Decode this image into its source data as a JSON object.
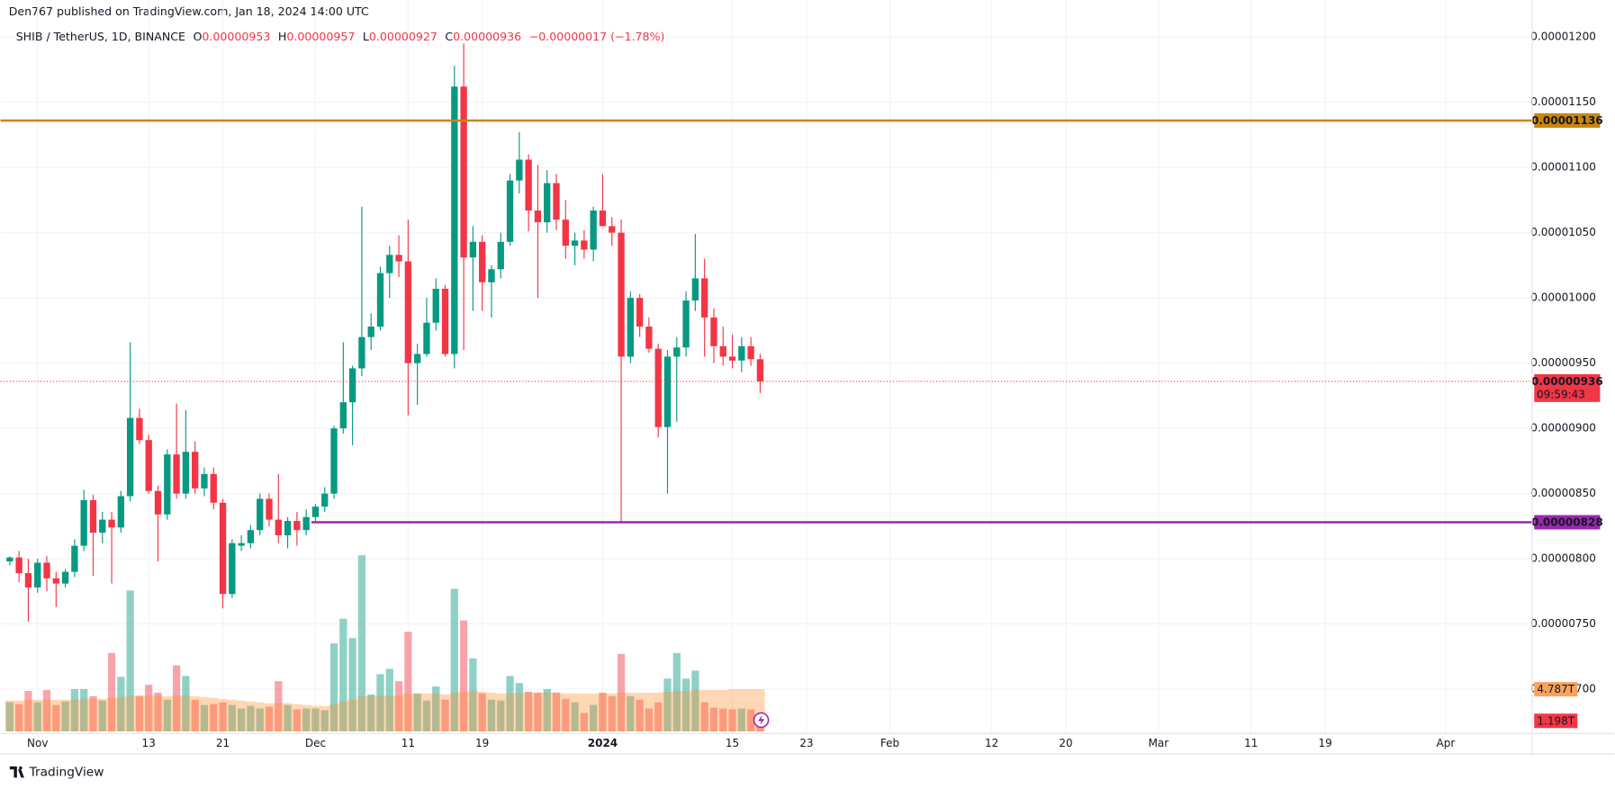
{
  "header": {
    "publisher": "Den767 published on TradingView.com, Jan 18, 2024 14:00 UTC"
  },
  "legend": {
    "symbol": "SHIB / TetherUS, 1D, BINANCE",
    "o": "O",
    "h": "H",
    "l": "L",
    "c": "C",
    "change": "−0.00000017 (−1.78%)"
  },
  "footer": {
    "brand": "TradingView"
  },
  "chart_data": {
    "type": "candlestick",
    "open": [
      7.98e-06,
      8.01e-06,
      7.89e-06,
      7.78e-06,
      7.97e-06,
      7.85e-06,
      7.81e-06,
      7.9e-06,
      8.1e-06,
      8.45e-06,
      8.2e-06,
      8.3e-06,
      8.24e-06,
      8.48e-06,
      9.08e-06,
      8.91e-06,
      8.52e-06,
      8.34e-06,
      8.8e-06,
      8.5e-06,
      8.82e-06,
      8.54e-06,
      8.65e-06,
      8.43e-06,
      7.73e-06,
      8.1e-06,
      8.12e-06,
      8.22e-06,
      8.46e-06,
      8.3e-06,
      8.18e-06,
      8.29e-06,
      8.22e-06,
      8.32e-06,
      8.4e-06,
      8.5e-06,
      9e-06,
      9.2e-06,
      9.46e-06,
      9.7e-06,
      9.78e-06,
      1.019e-05,
      1.033e-05,
      1.028e-05,
      9.5e-06,
      9.57e-06,
      9.81e-06,
      1.007e-05,
      9.57e-06,
      1.162e-05,
      1.031e-05,
      1.043e-05,
      1.012e-05,
      1.022e-05,
      1.043e-05,
      1.09e-05,
      1.106e-05,
      1.067e-05,
      1.058e-05,
      1.088e-05,
      1.06e-05,
      1.04e-05,
      1.044e-05,
      1.037e-05,
      1.067e-05,
      1.055e-05,
      1.05e-05,
      9.55e-06,
      1e-05,
      9.78e-06,
      9.61e-06,
      9.01e-06,
      9.55e-06,
      9.62e-06,
      9.98e-06,
      1.015e-05,
      9.85e-06,
      9.63e-06,
      9.55e-06,
      9.52e-06,
      9.63e-06,
      9.53e-06
    ],
    "high": [
      8.02e-06,
      8.06e-06,
      8e-06,
      8e-06,
      8.02e-06,
      7.9e-06,
      7.92e-06,
      8.15e-06,
      8.53e-06,
      8.49e-06,
      8.36e-06,
      8.36e-06,
      8.52e-06,
      9.66e-06,
      9.15e-06,
      8.95e-06,
      8.56e-06,
      8.84e-06,
      9.19e-06,
      9.14e-06,
      8.9e-06,
      8.7e-06,
      8.7e-06,
      8.46e-06,
      8.15e-06,
      8.18e-06,
      8.26e-06,
      8.5e-06,
      8.5e-06,
      8.65e-06,
      8.32e-06,
      8.36e-06,
      8.38e-06,
      8.42e-06,
      8.55e-06,
      9.02e-06,
      9.66e-06,
      9.48e-06,
      1.07e-05,
      9.88e-06,
      1.024e-05,
      1.04e-05,
      1.048e-05,
      1.06e-05,
      9.65e-06,
      1e-05,
      1.015e-05,
      1.01e-05,
      1.178e-05,
      1.195e-05,
      1.055e-05,
      1.048e-05,
      1.025e-05,
      1.05e-05,
      1.095e-05,
      1.127e-05,
      1.11e-05,
      1.102e-05,
      1.098e-05,
      1.095e-05,
      1.075e-05,
      1.05e-05,
      1.052e-05,
      1.07e-05,
      1.095e-05,
      1.062e-05,
      1.06e-05,
      1.005e-05,
      1.003e-05,
      9.85e-06,
      9.65e-06,
      9.6e-06,
      9.7e-06,
      1.005e-05,
      1.049e-05,
      1.03e-05,
      9.92e-06,
      9.78e-06,
      9.72e-06,
      9.7e-06,
      9.7e-06,
      9.57e-06
    ],
    "low": [
      7.95e-06,
      7.82e-06,
      7.52e-06,
      7.74e-06,
      7.75e-06,
      7.63e-06,
      7.78e-06,
      7.86e-06,
      8.06e-06,
      7.87e-06,
      8.12e-06,
      7.81e-06,
      8.2e-06,
      8.44e-06,
      8.88e-06,
      8.5e-06,
      7.98e-06,
      8.3e-06,
      8.46e-06,
      8.46e-06,
      8.5e-06,
      8.48e-06,
      8.38e-06,
      7.62e-06,
      7.7e-06,
      8.06e-06,
      8.08e-06,
      8.18e-06,
      8.25e-06,
      8.12e-06,
      8.08e-06,
      8.1e-06,
      8.18e-06,
      8.28e-06,
      8.36e-06,
      8.46e-06,
      8.96e-06,
      8.87e-06,
      9.4e-06,
      9.6e-06,
      9.75e-06,
      1e-05,
      1.016e-05,
      9.1e-06,
      9.18e-06,
      9.55e-06,
      9.75e-06,
      9.55e-06,
      9.46e-06,
      9.6e-06,
      9.9e-06,
      9.9e-06,
      9.85e-06,
      1.015e-05,
      1.04e-05,
      1.08e-05,
      1.051e-05,
      1e-05,
      1.05e-05,
      1.052e-05,
      1.03e-05,
      1.025e-05,
      1.03e-05,
      1.028e-05,
      1.055e-05,
      1.04e-05,
      8.28e-06,
      9.5e-06,
      9.7e-06,
      9.58e-06,
      8.93e-06,
      8.5e-06,
      9.05e-06,
      9.55e-06,
      9.9e-06,
      9.55e-06,
      9.5e-06,
      9.48e-06,
      9.46e-06,
      9.43e-06,
      9.48e-06,
      9.27e-06
    ],
    "close": [
      8.01e-06,
      7.89e-06,
      7.78e-06,
      7.97e-06,
      7.85e-06,
      7.81e-06,
      7.9e-06,
      8.1e-06,
      8.45e-06,
      8.2e-06,
      8.3e-06,
      8.24e-06,
      8.48e-06,
      9.08e-06,
      8.91e-06,
      8.52e-06,
      8.34e-06,
      8.8e-06,
      8.5e-06,
      8.82e-06,
      8.54e-06,
      8.65e-06,
      8.43e-06,
      7.73e-06,
      8.12e-06,
      8.12e-06,
      8.22e-06,
      8.46e-06,
      8.3e-06,
      8.18e-06,
      8.29e-06,
      8.22e-06,
      8.32e-06,
      8.4e-06,
      8.5e-06,
      9e-06,
      9.2e-06,
      9.46e-06,
      9.7e-06,
      9.78e-06,
      1.019e-05,
      1.033e-05,
      1.028e-05,
      9.5e-06,
      9.57e-06,
      9.81e-06,
      1.007e-05,
      9.57e-06,
      1.162e-05,
      1.031e-05,
      1.043e-05,
      1.012e-05,
      1.022e-05,
      1.043e-05,
      1.09e-05,
      1.106e-05,
      1.067e-05,
      1.058e-05,
      1.088e-05,
      1.06e-05,
      1.04e-05,
      1.044e-05,
      1.037e-05,
      1.067e-05,
      1.055e-05,
      1.05e-05,
      9.55e-06,
      1e-05,
      9.78e-06,
      9.61e-06,
      9.01e-06,
      9.55e-06,
      9.62e-06,
      9.98e-06,
      1.015e-05,
      9.85e-06,
      9.63e-06,
      9.55e-06,
      9.52e-06,
      9.63e-06,
      9.53e-06,
      9.36e-06
    ],
    "volume": [
      3.3,
      3.1,
      4.6,
      3.3,
      4.7,
      3.0,
      3.4,
      4.8,
      4.8,
      4.0,
      3.5,
      8.9,
      6.2,
      16.0,
      4.0,
      5.3,
      4.4,
      3.6,
      7.5,
      6.3,
      3.6,
      3.0,
      3.1,
      3.3,
      3.0,
      2.6,
      2.9,
      2.6,
      2.8,
      5.7,
      3.0,
      2.5,
      2.6,
      2.6,
      2.4,
      10.0,
      12.8,
      10.6,
      20.0,
      4.2,
      6.5,
      7.1,
      5.7,
      11.3,
      4.3,
      3.5,
      5.1,
      3.6,
      16.2,
      12.6,
      8.3,
      4.3,
      3.6,
      3.5,
      6.3,
      5.5,
      4.5,
      4.4,
      4.8,
      4.4,
      3.7,
      3.3,
      2.1,
      3.0,
      4.4,
      4.0,
      8.8,
      4.0,
      3.6,
      2.6,
      3.3,
      6.0,
      8.9,
      6.0,
      6.9,
      3.3,
      2.7,
      2.6,
      2.5,
      2.6,
      2.5,
      1.198
    ],
    "volume_ma": [
      3.5,
      3.5,
      3.6,
      3.6,
      3.6,
      3.6,
      3.6,
      3.6,
      3.7,
      3.7,
      3.7,
      3.8,
      3.9,
      4.1,
      4.1,
      4.1,
      4.1,
      4.0,
      4.1,
      4.1,
      4.0,
      3.9,
      3.8,
      3.7,
      3.6,
      3.5,
      3.4,
      3.3,
      3.2,
      3.2,
      3.2,
      3.1,
      3.0,
      2.9,
      2.9,
      3.1,
      3.4,
      3.6,
      4.0,
      4.0,
      4.1,
      4.1,
      4.1,
      4.3,
      4.3,
      4.3,
      4.3,
      4.2,
      4.4,
      4.5,
      4.6,
      4.5,
      4.4,
      4.3,
      4.3,
      4.4,
      4.4,
      4.4,
      4.4,
      4.4,
      4.3,
      4.3,
      4.3,
      4.3,
      4.3,
      4.3,
      4.4,
      4.4,
      4.4,
      4.4,
      4.4,
      4.5,
      4.6,
      4.6,
      4.7,
      4.7,
      4.7,
      4.7,
      4.8,
      4.8,
      4.8,
      4.787
    ],
    "volume_ma_label": "4.787T",
    "last_volume_label": "1.198T",
    "countdown": "09:59:43",
    "ylim": [
      6.661e-06,
      1.2284e-05
    ],
    "vlim": [
      0,
      83.06
    ],
    "yticks": [
      {
        "value": 7e-06,
        "label": "0.00000700"
      },
      {
        "value": 7.5e-06,
        "label": "0.00000750"
      },
      {
        "value": 8e-06,
        "label": "0.00000800"
      },
      {
        "value": 8.5e-06,
        "label": "0.00000850"
      },
      {
        "value": 9e-06,
        "label": "0.00000900"
      },
      {
        "value": 9.5e-06,
        "label": "0.00000950"
      },
      {
        "value": 1e-05,
        "label": "0.00001000"
      },
      {
        "value": 1.05e-05,
        "label": "0.00001050"
      },
      {
        "value": 1.1e-05,
        "label": "0.00001100"
      },
      {
        "value": 1.15e-05,
        "label": "0.00001150"
      },
      {
        "value": 1.2e-05,
        "label": "0.00001200"
      }
    ],
    "xticks": [
      {
        "value": 3,
        "label": "Nov"
      },
      {
        "value": 15,
        "label": "13"
      },
      {
        "value": 23,
        "label": "21"
      },
      {
        "value": 33,
        "label": "Dec"
      },
      {
        "value": 43,
        "label": "11"
      },
      {
        "value": 51,
        "label": "19"
      },
      {
        "value": 64,
        "label": "2024"
      },
      {
        "value": 78,
        "label": "15"
      },
      {
        "value": 86,
        "label": "23"
      },
      {
        "value": 95,
        "label": "Feb"
      },
      {
        "value": 106,
        "label": "12"
      },
      {
        "value": 114,
        "label": "20"
      },
      {
        "value": 124,
        "label": "Mar"
      },
      {
        "value": 134,
        "label": "11"
      },
      {
        "value": 142,
        "label": "19"
      },
      {
        "value": 155,
        "label": "Apr"
      }
    ],
    "levels": [
      {
        "value": 1.136e-05,
        "color": "#c8860d"
      },
      {
        "value": 8.28e-06,
        "color": "#9c27b0"
      }
    ],
    "up_color": "#089981",
    "down_color": "#f23645",
    "volume_up_color": "rgba(8,153,129,0.45)",
    "volume_down_color": "rgba(242,54,69,0.45)",
    "volume_ma_color": "rgba(255,140,40,0.35)",
    "grid": true
  }
}
